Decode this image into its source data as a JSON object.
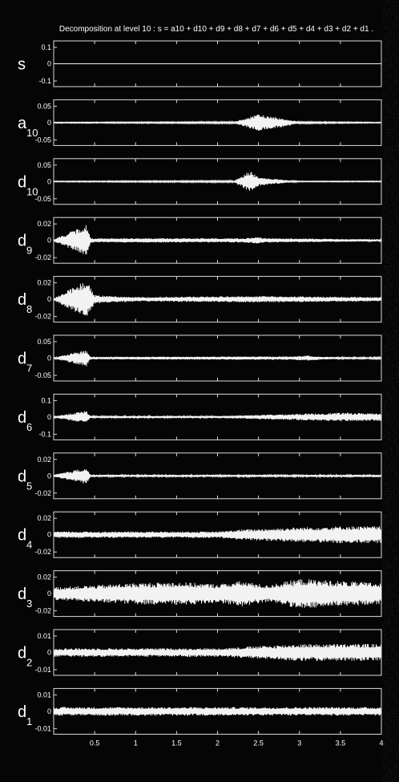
{
  "chart_data": {
    "type": "line",
    "title": "Decomposition at level 10 : s = a10 + d10 + d9 + d8 + d7 + d6 + d5 + d4 + d3 + d2 + d1 .",
    "x_range": [
      0,
      4
    ],
    "x_ticks": [
      "0.5",
      "1",
      "1.5",
      "2",
      "2.5",
      "3",
      "3.5",
      "4"
    ],
    "panels": [
      {
        "name": "s",
        "sub": "",
        "ylim": [
          -0.1,
          0.1
        ],
        "yticks": [
          "0.1",
          "0",
          "-0.1"
        ],
        "envelope": [
          [
            0,
            0
          ],
          [
            4,
            0
          ]
        ]
      },
      {
        "name": "a",
        "sub": "10",
        "ylim": [
          -0.05,
          0.05
        ],
        "yticks": [
          "0.05",
          "0",
          "-0.05"
        ],
        "envelope": [
          [
            0,
            0.001
          ],
          [
            2.2,
            0.002
          ],
          [
            2.5,
            0.02
          ],
          [
            2.8,
            0.01
          ],
          [
            3.0,
            0.002
          ],
          [
            4,
            0.001
          ]
        ]
      },
      {
        "name": "d",
        "sub": "10",
        "ylim": [
          -0.05,
          0.05
        ],
        "yticks": [
          "0.05",
          "0",
          "-0.05"
        ],
        "envelope": [
          [
            0,
            0.001
          ],
          [
            2.2,
            0.002
          ],
          [
            2.4,
            0.025
          ],
          [
            2.5,
            0.01
          ],
          [
            2.8,
            0.004
          ],
          [
            3.0,
            0.001
          ],
          [
            4,
            0.001
          ]
        ]
      },
      {
        "name": "d",
        "sub": "9",
        "ylim": [
          -0.02,
          0.02
        ],
        "yticks": [
          "0.02",
          "0",
          "-0.02"
        ],
        "envelope": [
          [
            0,
            0.001
          ],
          [
            0.4,
            0.015
          ],
          [
            0.45,
            0.002
          ],
          [
            2.3,
            0.002
          ],
          [
            2.5,
            0.003
          ],
          [
            2.6,
            0.002
          ],
          [
            4,
            0.001
          ]
        ]
      },
      {
        "name": "d",
        "sub": "8",
        "ylim": [
          -0.02,
          0.02
        ],
        "yticks": [
          "0.02",
          "0",
          "-0.02"
        ],
        "envelope": [
          [
            0,
            0.001
          ],
          [
            0.4,
            0.018
          ],
          [
            0.5,
            0.004
          ],
          [
            1.0,
            0.002
          ],
          [
            2.4,
            0.003
          ],
          [
            4,
            0.002
          ]
        ]
      },
      {
        "name": "d",
        "sub": "7",
        "ylim": [
          -0.05,
          0.05
        ],
        "yticks": [
          "0.05",
          "0",
          "-0.05"
        ],
        "envelope": [
          [
            0,
            0.001
          ],
          [
            0.4,
            0.02
          ],
          [
            0.45,
            0.003
          ],
          [
            2.9,
            0.004
          ],
          [
            3.1,
            0.006
          ],
          [
            3.3,
            0.003
          ],
          [
            4,
            0.002
          ]
        ]
      },
      {
        "name": "d",
        "sub": "6",
        "ylim": [
          -0.1,
          0.1
        ],
        "yticks": [
          "0.1",
          "0",
          "-0.1"
        ],
        "envelope": [
          [
            0,
            0.003
          ],
          [
            0.4,
            0.03
          ],
          [
            0.45,
            0.005
          ],
          [
            2.0,
            0.005
          ],
          [
            2.5,
            0.01
          ],
          [
            3.0,
            0.015
          ],
          [
            3.5,
            0.02
          ],
          [
            4,
            0.018
          ]
        ]
      },
      {
        "name": "d",
        "sub": "5",
        "ylim": [
          -0.02,
          0.02
        ],
        "yticks": [
          "0.02",
          "0",
          "-0.02"
        ],
        "envelope": [
          [
            0,
            0.001
          ],
          [
            0.4,
            0.008
          ],
          [
            0.45,
            0.001
          ],
          [
            4,
            0.001
          ]
        ]
      },
      {
        "name": "d",
        "sub": "4",
        "ylim": [
          -0.02,
          0.02
        ],
        "yticks": [
          "0.02",
          "0",
          "-0.02"
        ],
        "envelope": [
          [
            0,
            0.003
          ],
          [
            2.0,
            0.003
          ],
          [
            2.3,
            0.005
          ],
          [
            3.0,
            0.007
          ],
          [
            3.5,
            0.008
          ],
          [
            4,
            0.008
          ]
        ]
      },
      {
        "name": "d",
        "sub": "3",
        "ylim": [
          -0.02,
          0.02
        ],
        "yticks": [
          "0.02",
          "0",
          "-0.02"
        ],
        "envelope": [
          [
            0,
            0.006
          ],
          [
            0.5,
            0.008
          ],
          [
            1.0,
            0.01
          ],
          [
            1.5,
            0.011
          ],
          [
            2.0,
            0.009
          ],
          [
            2.3,
            0.012
          ],
          [
            2.6,
            0.008
          ],
          [
            3.0,
            0.014
          ],
          [
            3.5,
            0.012
          ],
          [
            4,
            0.01
          ]
        ]
      },
      {
        "name": "d",
        "sub": "2",
        "ylim": [
          -0.01,
          0.01
        ],
        "yticks": [
          "0.01",
          "0",
          "-0.01"
        ],
        "envelope": [
          [
            0,
            0.002
          ],
          [
            2.0,
            0.002
          ],
          [
            2.5,
            0.003
          ],
          [
            3.0,
            0.004
          ],
          [
            3.5,
            0.004
          ],
          [
            4,
            0.004
          ]
        ]
      },
      {
        "name": "d",
        "sub": "1",
        "ylim": [
          -0.01,
          0.01
        ],
        "yticks": [
          "0.01",
          "0",
          "-0.01"
        ],
        "envelope": [
          [
            0,
            0.002
          ],
          [
            4,
            0.002
          ]
        ]
      }
    ],
    "grid": false,
    "legend": "none"
  },
  "colors": {
    "background": "#050505",
    "trace": "#f2f2f2",
    "axes": "#dcdcdc"
  }
}
